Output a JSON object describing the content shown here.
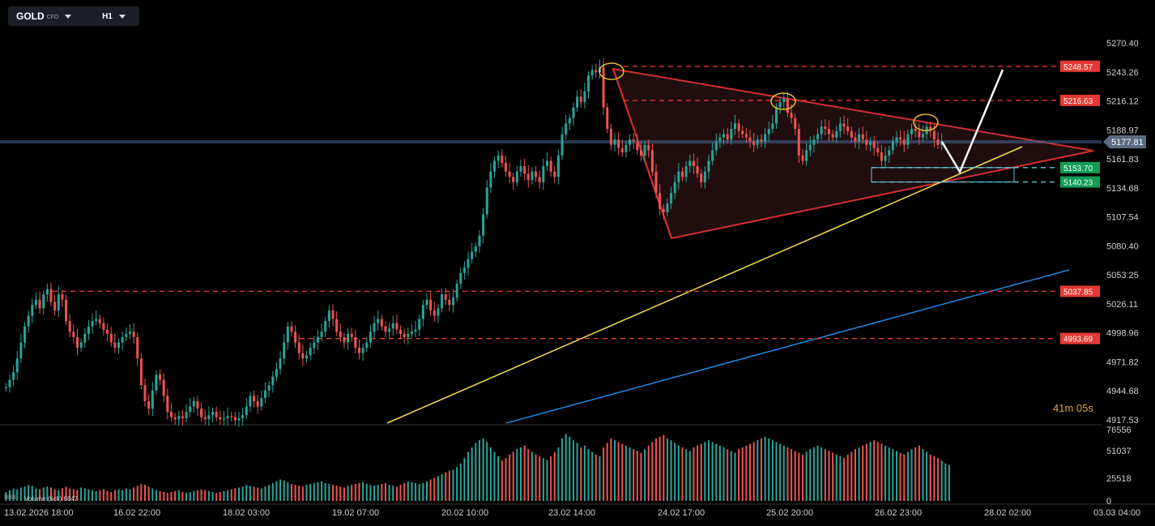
{
  "header": {
    "symbol": "GOLD",
    "symbol_type": "CFD",
    "timeframe": "H1"
  },
  "countdown": "41m 05s",
  "volume_label": "Volume (tick) 6847",
  "colors": {
    "up": "#26a69a",
    "down": "#ef5350",
    "hline": "#e53935",
    "trend": "#d32f2f",
    "support": "#f2e04a",
    "channel": "#1e88e5",
    "arrow": "#ffffff",
    "zone": "#64c8dc",
    "circle": "#e0c030"
  },
  "chart_data": {
    "type": "candlestick",
    "ylim": [
      4917.53,
      5270.4
    ],
    "y_ticks": [
      "5270.40",
      "5243.26",
      "5216.12",
      "5188.97",
      "5161.83",
      "5134.68",
      "5107.54",
      "5080.40",
      "5053.25",
      "5026.11",
      "4998.96",
      "4971.82",
      "4944.68",
      "4917.53"
    ],
    "x_ticks": [
      "13.02.2026 18:00",
      "16.02 22:00",
      "18.02 03:00",
      "19.02 07:00",
      "20.02 10:00",
      "23.02 14:00",
      "24.02 17:00",
      "25.02 20:00",
      "26.02 23:00",
      "28.02 02:00",
      "03.03 04:00"
    ],
    "x_tick_index": [
      0,
      30,
      60,
      90,
      120,
      150,
      180,
      210,
      240,
      270,
      300
    ],
    "current_price": "5177.81",
    "levels": [
      {
        "label": "5248.57",
        "value": 5248.57,
        "color": "red",
        "style": "dashed"
      },
      {
        "label": "5216.63",
        "value": 5216.63,
        "color": "red",
        "style": "dashed"
      },
      {
        "label": "5153.70",
        "value": 5153.7,
        "color": "green",
        "style": "dashed-cyan"
      },
      {
        "label": "5140.23",
        "value": 5140.23,
        "color": "green",
        "style": "dashed-cyan"
      },
      {
        "label": "5037.85",
        "value": 5037.85,
        "color": "red",
        "style": "dashed"
      },
      {
        "label": "4993.69",
        "value": 4993.69,
        "color": "red",
        "style": "dashed"
      }
    ],
    "closes": [
      4948,
      4955,
      4962,
      4975,
      4990,
      5005,
      5015,
      5025,
      5030,
      5022,
      5035,
      5040,
      5028,
      5020,
      5035,
      5030,
      5010,
      5000,
      4995,
      4985,
      4990,
      4998,
      5005,
      5010,
      5012,
      5008,
      5002,
      4998,
      4990,
      4985,
      4990,
      4995,
      4998,
      5000,
      4995,
      4975,
      4950,
      4935,
      4928,
      4945,
      4960,
      4955,
      4940,
      4925,
      4920,
      4918,
      4921,
      4919,
      4925,
      4930,
      4935,
      4928,
      4920,
      4918,
      4922,
      4925,
      4920,
      4918,
      4919,
      4921,
      4920,
      4917,
      4919,
      4922,
      4930,
      4940,
      4935,
      4930,
      4938,
      4945,
      4950,
      4958,
      4965,
      4975,
      4990,
      5005,
      5000,
      4990,
      4980,
      4975,
      4978,
      4985,
      4990,
      4995,
      5000,
      5010,
      5020,
      5012,
      5000,
      4995,
      4990,
      4998,
      4995,
      4985,
      4980,
      4985,
      4990,
      5000,
      5008,
      5012,
      5005,
      5000,
      5003,
      5008,
      5002,
      4998,
      4995,
      4998,
      5000,
      5002,
      5012,
      5025,
      5030,
      5020,
      5015,
      5022,
      5035,
      5030,
      5025,
      5032,
      5045,
      5055,
      5060,
      5068,
      5075,
      5080,
      5090,
      5110,
      5135,
      5150,
      5160,
      5165,
      5158,
      5150,
      5145,
      5140,
      5150,
      5155,
      5148,
      5142,
      5150,
      5145,
      5140,
      5155,
      5160,
      5150,
      5145,
      5165,
      5185,
      5195,
      5200,
      5210,
      5220,
      5215,
      5225,
      5240,
      5245,
      5243,
      5248,
      5210,
      5190,
      5175,
      5180,
      5172,
      5168,
      5175,
      5180,
      5178,
      5170,
      5165,
      5175,
      5170,
      5150,
      5130,
      5115,
      5112,
      5120,
      5130,
      5140,
      5150,
      5145,
      5155,
      5160,
      5155,
      5148,
      5140,
      5150,
      5160,
      5170,
      5178,
      5182,
      5185,
      5180,
      5190,
      5195,
      5188,
      5185,
      5182,
      5178,
      5175,
      5180,
      5178,
      5185,
      5190,
      5195,
      5210,
      5215,
      5218,
      5205,
      5200,
      5190,
      5165,
      5160,
      5170,
      5175,
      5180,
      5185,
      5192,
      5190,
      5185,
      5182,
      5188,
      5195,
      5192,
      5188,
      5182,
      5178,
      5185,
      5180,
      5175,
      5178,
      5172,
      5168,
      5160,
      5165,
      5170,
      5178,
      5182,
      5180,
      5175,
      5185,
      5190,
      5188,
      5182,
      5185,
      5192,
      5188,
      5180,
      5175,
      5178
    ],
    "volumes": [
      10,
      12,
      14,
      13,
      15,
      16,
      18,
      17,
      14,
      13,
      15,
      16,
      15,
      13,
      12,
      14,
      16,
      14,
      13,
      12,
      15,
      14,
      13,
      12,
      11,
      12,
      13,
      11,
      10,
      12,
      13,
      12,
      14,
      13,
      15,
      17,
      19,
      18,
      16,
      14,
      12,
      11,
      10,
      9,
      10,
      11,
      12,
      10,
      9,
      10,
      11,
      12,
      13,
      12,
      11,
      10,
      9,
      10,
      11,
      12,
      13,
      14,
      15,
      16,
      18,
      17,
      16,
      15,
      14,
      16,
      18,
      20,
      22,
      24,
      23,
      21,
      19,
      18,
      17,
      16,
      18,
      19,
      20,
      21,
      22,
      20,
      19,
      18,
      17,
      16,
      15,
      17,
      18,
      19,
      20,
      21,
      19,
      18,
      17,
      18,
      19,
      20,
      18,
      17,
      16,
      18,
      20,
      22,
      21,
      20,
      19,
      20,
      22,
      24,
      26,
      28,
      30,
      32,
      34,
      35,
      38,
      42,
      48,
      55,
      60,
      65,
      68,
      70,
      66,
      60,
      55,
      50,
      45,
      48,
      52,
      55,
      58,
      60,
      62,
      58,
      55,
      52,
      50,
      48,
      46,
      50,
      55,
      60,
      70,
      75,
      72,
      68,
      65,
      60,
      62,
      58,
      55,
      52,
      50,
      60,
      65,
      70,
      68,
      66,
      64,
      62,
      60,
      58,
      56,
      54,
      58,
      62,
      66,
      70,
      72,
      74,
      70,
      68,
      65,
      62,
      60,
      58,
      56,
      60,
      62,
      64,
      66,
      68,
      66,
      64,
      62,
      60,
      58,
      56,
      54,
      58,
      60,
      62,
      64,
      66,
      68,
      70,
      72,
      70,
      68,
      66,
      64,
      62,
      60,
      58,
      56,
      54,
      52,
      55,
      58,
      60,
      62,
      60,
      58,
      56,
      54,
      52,
      50,
      48,
      52,
      55,
      58,
      60,
      62,
      64,
      66,
      68,
      66,
      64,
      62,
      60,
      58,
      56,
      54,
      52,
      55,
      58,
      60,
      62,
      58,
      55,
      52,
      50,
      48,
      45,
      42,
      40
    ]
  },
  "annotations": {
    "triangle_apex_price": 5172,
    "arrow_points": [
      [
        5175,
        0
      ],
      [
        5152,
        0
      ],
      [
        5248,
        0
      ]
    ]
  }
}
